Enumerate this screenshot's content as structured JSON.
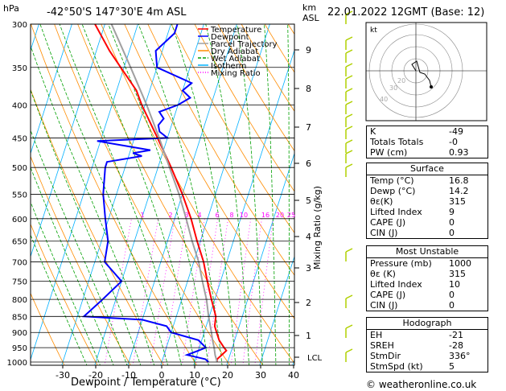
{
  "header": {
    "hpa": "hPa",
    "location": "-42°50'S 147°30'E 4m ASL",
    "km": "km",
    "asl": "ASL",
    "datetime": "22.01.2022 12GMT (Base: 12)"
  },
  "legend": [
    "Temperature",
    "Dewpoint",
    "Parcel Trajectory",
    "Dry Adiabat",
    "Wet Adiabat",
    "Isotherm",
    "Mixing Ratio"
  ],
  "colors": {
    "temperature": "#ff0000",
    "dewpoint": "#0000ff",
    "parcel": "#a0a0a0",
    "dry_adiabat": "#ff8c00",
    "wet_adiabat": "#00a000",
    "isotherm": "#00b0ff",
    "mixing_ratio": "#ff00ff",
    "wind": "#b0d000"
  },
  "axes": {
    "xlabel": "Dewpoint / Temperature (°C)",
    "ylabel": "Mixing Ratio (g/kg)",
    "x_ticks": [
      "-30",
      "-20",
      "-10",
      "0",
      "10",
      "20",
      "30",
      "40"
    ],
    "p_ticks": [
      "300",
      "350",
      "400",
      "450",
      "500",
      "550",
      "600",
      "650",
      "700",
      "750",
      "800",
      "850",
      "900",
      "950",
      "1000"
    ],
    "km_ticks": [
      "9",
      "8",
      "7",
      "6",
      "5",
      "4",
      "3",
      "2",
      "1"
    ],
    "lcl": "LCL",
    "mixing_ratio_labels": [
      "1",
      "2",
      "3",
      "4",
      "6",
      "8",
      "10",
      "16",
      "20",
      "25"
    ]
  },
  "chart_data": {
    "type": "line",
    "title": "-42°50'S 147°30'E 4m ASL",
    "xlabel": "Dewpoint / Temperature (°C)",
    "ylabel": "hPa",
    "xlim": [
      -35,
      40
    ],
    "ylim": [
      1050,
      300
    ],
    "y_scale": "log",
    "series": [
      {
        "name": "Temperature",
        "pressure": [
          1000,
          990,
          975,
          960,
          950,
          925,
          900,
          880,
          850,
          800,
          750,
          700,
          650,
          600,
          550,
          500,
          450,
          400,
          380,
          350,
          330,
          300
        ],
        "values": [
          16.8,
          16.5,
          17.5,
          18.5,
          17.5,
          15.3,
          13.8,
          12.6,
          12,
          9,
          6,
          3,
          -1,
          -5,
          -10,
          -16,
          -23,
          -31,
          -34,
          -41,
          -46,
          -53
        ]
      },
      {
        "name": "Dewpoint",
        "pressure": [
          1000,
          990,
          975,
          960,
          950,
          925,
          900,
          880,
          860,
          850,
          800,
          750,
          700,
          650,
          600,
          550,
          500,
          490,
          480,
          475,
          470,
          455,
          450,
          440,
          430,
          420,
          410,
          400,
          390,
          380,
          370,
          350,
          330,
          310,
          300
        ],
        "values": [
          14.2,
          13,
          7,
          10,
          12,
          9,
          0,
          -2,
          -10,
          -28,
          -24,
          -20,
          -27,
          -28,
          -31,
          -34,
          -36,
          -36,
          -26,
          -29,
          -24,
          -41,
          -20,
          -23,
          -24,
          -23,
          -25,
          -20,
          -17,
          -20,
          -18,
          -30,
          -32,
          -28,
          -28
        ]
      },
      {
        "name": "Parcel Trajectory",
        "pressure": [
          1000,
          975,
          950,
          925,
          900,
          850,
          800,
          750,
          700,
          650,
          600,
          550,
          500,
          450,
          400,
          350,
          300
        ],
        "values": [
          16.8,
          15.5,
          14.5,
          13.3,
          12.2,
          9.8,
          7.5,
          4.5,
          1.5,
          -2.5,
          -6.5,
          -11,
          -16.5,
          -22.5,
          -29.5,
          -38,
          -48
        ]
      }
    ],
    "grid": true
  },
  "indices": {
    "rows": [
      {
        "label": "K",
        "value": "-49"
      },
      {
        "label": "Totals Totals",
        "value": "-0"
      },
      {
        "label": "PW (cm)",
        "value": "0.93"
      }
    ],
    "surface": {
      "title": "Surface",
      "rows": [
        {
          "label": "Temp (°C)",
          "value": "16.8"
        },
        {
          "label": "Dewp (°C)",
          "value": "14.2"
        },
        {
          "label": "θε(K)",
          "value": "315"
        },
        {
          "label": "Lifted Index",
          "value": "9"
        },
        {
          "label": "CAPE (J)",
          "value": "0"
        },
        {
          "label": "CIN (J)",
          "value": "0"
        }
      ]
    },
    "most_unstable": {
      "title": "Most Unstable",
      "rows": [
        {
          "label": "Pressure (mb)",
          "value": "1000"
        },
        {
          "label": "θε (K)",
          "value": "315"
        },
        {
          "label": "Lifted Index",
          "value": "10"
        },
        {
          "label": "CAPE (J)",
          "value": "0"
        },
        {
          "label": "CIN (J)",
          "value": "0"
        }
      ]
    },
    "hodograph": {
      "title": "Hodograph",
      "rows": [
        {
          "label": "EH",
          "value": "-21"
        },
        {
          "label": "SREH",
          "value": "-28"
        },
        {
          "label": "StmDir",
          "value": "336°"
        },
        {
          "label": "StmSpd (kt)",
          "value": "5"
        }
      ]
    }
  },
  "hodo": {
    "unit": "kt",
    "ring_labels": [
      "20",
      "30",
      "40"
    ]
  },
  "footer": "© weatheronline.co.uk"
}
